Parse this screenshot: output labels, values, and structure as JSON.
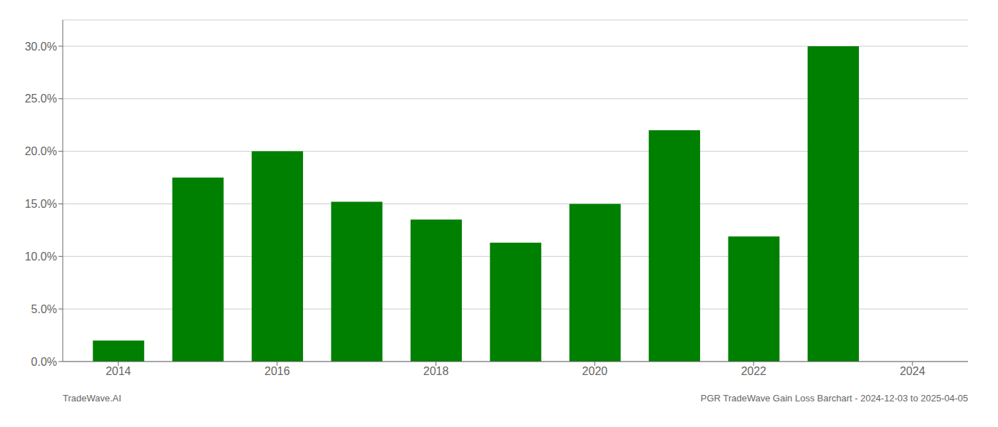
{
  "chart_data": {
    "type": "bar",
    "x": [
      2014,
      2015,
      2016,
      2017,
      2018,
      2019,
      2020,
      2021,
      2022,
      2023
    ],
    "values": [
      0.02,
      0.175,
      0.2,
      0.152,
      0.135,
      0.113,
      0.15,
      0.22,
      0.119,
      0.3
    ],
    "color": "#008000",
    "xlim": [
      2013.3,
      2024.7
    ],
    "xticks": [
      2014,
      2016,
      2018,
      2020,
      2022,
      2024
    ],
    "ylim": [
      0.0,
      0.325
    ],
    "yticks": [
      {
        "value": 0.0,
        "label": "0.0%"
      },
      {
        "value": 0.05,
        "label": "5.0%"
      },
      {
        "value": 0.1,
        "label": "10.0%"
      },
      {
        "value": 0.15,
        "label": "15.0%"
      },
      {
        "value": 0.2,
        "label": "20.0%"
      },
      {
        "value": 0.25,
        "label": "25.0%"
      },
      {
        "value": 0.3,
        "label": "30.0%"
      }
    ],
    "grid": true,
    "annotations": [
      "TradeWave.AI",
      "PGR TradeWave Gain Loss Barchart - 2024-12-03 to 2025-04-05"
    ]
  }
}
